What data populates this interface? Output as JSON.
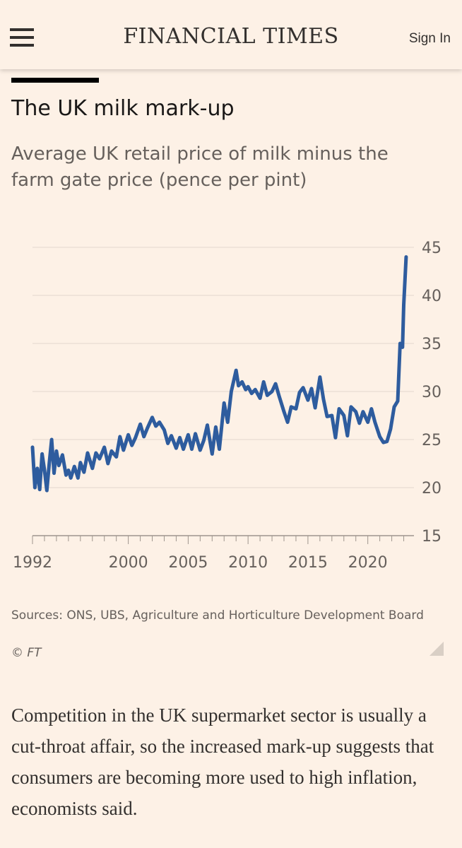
{
  "header": {
    "logo": "FINANCIAL TIMES",
    "sign_in": "Sign In"
  },
  "article": {
    "chart_title": "The UK milk mark-up",
    "chart_subtitle": "Average UK retail price of milk minus the farm gate price (pence per pint)",
    "sources": "Sources: ONS, UBS, Agriculture and Horticulture Development Board",
    "copyright": "© FT",
    "body": "Competition in the UK supermarket sector is usually a cut-throat affair, so the increased mark-up suggests that consumers are becoming more used to high inflation, economists said."
  },
  "colors": {
    "background": "#fdf1e6",
    "line": "#2e5c9e",
    "grid": "#e3d8cd",
    "axis_text": "#66605c"
  },
  "chart_data": {
    "type": "line",
    "title": "The UK milk mark-up",
    "subtitle": "Average UK retail price of milk minus the farm gate price (pence per pint)",
    "ylim": [
      15,
      45
    ],
    "y_ticks": [
      15,
      20,
      25,
      30,
      35,
      40,
      45
    ],
    "xlim": [
      1992,
      2023.5
    ],
    "x_tick_labels": [
      "1992",
      "2000",
      "2005",
      "2010",
      "2015",
      "2020"
    ],
    "x_tick_values": [
      1992,
      2000,
      2005,
      2010,
      2015,
      2020
    ],
    "y_axis_side": "right",
    "grid": "horizontal",
    "series": [
      {
        "x": [
          1992.0,
          1992.2,
          1992.4,
          1992.6,
          1992.8,
          1993.0,
          1993.2,
          1993.4,
          1993.6,
          1993.8,
          1994.0,
          1994.2,
          1994.5,
          1994.8,
          1995.0,
          1995.2,
          1995.5,
          1995.8,
          1996.0,
          1996.3,
          1996.6,
          1997.0,
          1997.3,
          1997.6,
          1998.0,
          1998.3,
          1998.6,
          1999.0,
          1999.3,
          1999.6,
          2000.0,
          2000.3,
          2000.6,
          2001.0,
          2001.3,
          2001.6,
          2002.0,
          2002.3,
          2002.6,
          2003.0,
          2003.3,
          2003.6,
          2004.0,
          2004.3,
          2004.6,
          2005.0,
          2005.3,
          2005.6,
          2006.0,
          2006.3,
          2006.6,
          2007.0,
          2007.3,
          2007.6,
          2008.0,
          2008.3,
          2008.6,
          2009.0,
          2009.2,
          2009.5,
          2009.8,
          2010.0,
          2010.3,
          2010.6,
          2011.0,
          2011.3,
          2011.6,
          2012.0,
          2012.3,
          2012.6,
          2013.0,
          2013.3,
          2013.6,
          2014.0,
          2014.3,
          2014.6,
          2015.0,
          2015.3,
          2015.6,
          2016.0,
          2016.3,
          2016.6,
          2017.0,
          2017.3,
          2017.6,
          2018.0,
          2018.3,
          2018.6,
          2019.0,
          2019.3,
          2019.6,
          2020.0,
          2020.3,
          2020.6,
          2021.0,
          2021.3,
          2021.6,
          2021.9,
          2022.2,
          2022.5,
          2022.7,
          2022.9,
          2023.0,
          2023.2
        ],
        "values": [
          24.2,
          20.0,
          22.0,
          19.8,
          23.5,
          21.8,
          19.7,
          22.5,
          25.0,
          21.5,
          23.8,
          22.3,
          23.4,
          21.3,
          21.8,
          21.0,
          22.2,
          21.0,
          22.6,
          21.6,
          23.6,
          22.0,
          23.6,
          23.0,
          24.2,
          22.5,
          23.8,
          23.2,
          25.3,
          23.9,
          25.5,
          24.4,
          25.2,
          26.6,
          25.3,
          26.2,
          27.3,
          26.4,
          26.8,
          26.0,
          24.6,
          25.4,
          24.1,
          25.2,
          24.0,
          25.5,
          24.0,
          25.6,
          23.9,
          24.9,
          26.5,
          23.5,
          26.3,
          24.0,
          28.8,
          26.8,
          30.0,
          32.2,
          30.6,
          31.0,
          30.2,
          30.5,
          29.8,
          30.2,
          29.3,
          31.0,
          29.6,
          30.0,
          30.8,
          29.5,
          27.9,
          26.8,
          28.4,
          28.2,
          29.9,
          30.4,
          29.1,
          30.3,
          28.3,
          31.5,
          29.2,
          27.4,
          27.5,
          25.2,
          28.2,
          27.5,
          25.4,
          28.4,
          27.9,
          26.7,
          27.9,
          26.8,
          28.2,
          26.8,
          25.3,
          24.7,
          24.8,
          26.1,
          28.4,
          29.0,
          35.0,
          34.6,
          39.0,
          44.0
        ]
      }
    ]
  }
}
